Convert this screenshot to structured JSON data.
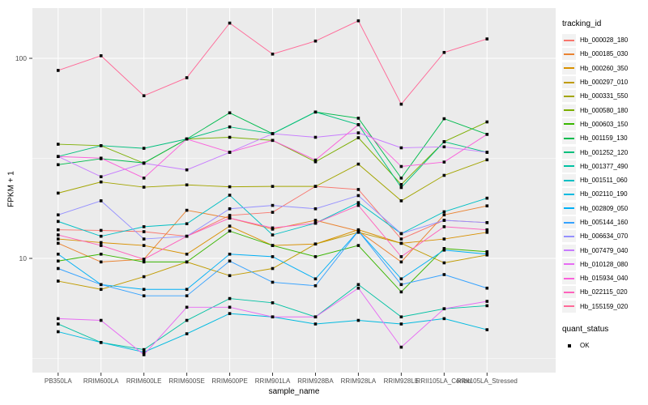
{
  "chart_data": {
    "type": "line",
    "title": "",
    "xlabel": "sample_name",
    "ylabel": "FPKM + 1",
    "y_scale": "log10",
    "y_ticks": [
      {
        "value": 10,
        "label": "10"
      },
      {
        "value": 100,
        "label": "100"
      }
    ],
    "y_minor_ticks": [
      3.162,
      31.62
    ],
    "ylim": [
      2.6,
      180
    ],
    "grid": true,
    "panel_color": "#EBEBEB",
    "gridline_color": "#FFFFFF",
    "tick_label_color": "#4D4D4D",
    "point_shape": "filled-square",
    "point_color": "#000000",
    "legend_position": "right",
    "legend_title": "tracking_id",
    "legend2_title": "quant_status",
    "legend2_items": [
      {
        "label": "OK"
      }
    ],
    "categories": [
      "PB350LA",
      "RRIM600LA",
      "RRIM600LE",
      "RRIM600SE",
      "RRIM600PE",
      "RRIM901LA",
      "RRIM928BA",
      "RRIM928LA",
      "RRIM928LE",
      "RRII105LA_Control",
      "RRII105LA_Stressed"
    ],
    "series": [
      {
        "name": "Hb_000028_180",
        "color": "#F8766D",
        "values": [
          13.9,
          13.8,
          13.6,
          12.9,
          16.4,
          17.0,
          22.9,
          22.1,
          12.5,
          15.5,
          15.1
        ]
      },
      {
        "name": "Hb_000185_030",
        "color": "#EA8331",
        "values": [
          11.9,
          9.6,
          9.9,
          17.4,
          15.9,
          14.0,
          15.5,
          13.7,
          9.6,
          16.5,
          18.3
        ]
      },
      {
        "name": "Hb_000260_350",
        "color": "#D89000",
        "values": [
          12.5,
          12.0,
          11.6,
          10.5,
          14.5,
          11.6,
          11.8,
          13.9,
          11.9,
          12.5,
          13.5
        ]
      },
      {
        "name": "Hb_000297_010",
        "color": "#C09B00",
        "values": [
          7.7,
          7.0,
          8.1,
          9.6,
          8.2,
          8.9,
          11.8,
          13.5,
          11.9,
          9.5,
          10.4
        ]
      },
      {
        "name": "Hb_000331_550",
        "color": "#A3A500",
        "values": [
          21.2,
          24.1,
          22.7,
          23.3,
          22.8,
          22.9,
          22.9,
          29.6,
          19.4,
          26.0,
          31.1
        ]
      },
      {
        "name": "Hb_000580_180",
        "color": "#7CAE00",
        "values": [
          37.2,
          36.6,
          29.9,
          39.5,
          40.3,
          38.9,
          30.4,
          40.1,
          23.4,
          38.3,
          48.1
        ]
      },
      {
        "name": "Hb_000603_150",
        "color": "#39B600",
        "values": [
          9.7,
          10.5,
          9.6,
          9.6,
          13.7,
          11.6,
          10.2,
          11.6,
          6.8,
          11.2,
          10.8
        ]
      },
      {
        "name": "Hb_001159_130",
        "color": "#00BB4E",
        "values": [
          29.4,
          31.5,
          30.0,
          39.5,
          53.4,
          42.0,
          53.9,
          50.2,
          25.2,
          49.9,
          41.7
        ]
      },
      {
        "name": "Hb_001252_120",
        "color": "#00BF7D",
        "values": [
          32.3,
          36.6,
          35.5,
          39.5,
          45.4,
          42.0,
          53.9,
          46.6,
          22.6,
          38.3,
          33.9
        ]
      },
      {
        "name": "Hb_001377_490",
        "color": "#00C1A3",
        "values": [
          4.7,
          3.8,
          3.5,
          4.9,
          6.3,
          6.0,
          5.1,
          7.4,
          5.1,
          5.6,
          5.8
        ]
      },
      {
        "name": "Hb_001511_060",
        "color": "#00BFC4",
        "values": [
          15.3,
          12.9,
          14.4,
          14.9,
          20.7,
          13.1,
          15.0,
          19.0,
          13.3,
          17.1,
          20.0
        ]
      },
      {
        "name": "Hb_002110_190",
        "color": "#00BAE0",
        "values": [
          4.3,
          3.8,
          3.4,
          4.2,
          5.3,
          5.1,
          4.7,
          4.9,
          4.7,
          5.0,
          4.4
        ]
      },
      {
        "name": "Hb_002809_050",
        "color": "#00B0F6",
        "values": [
          10.5,
          7.4,
          7.0,
          7.0,
          10.5,
          10.2,
          7.9,
          13.7,
          7.9,
          11.0,
          10.5
        ]
      },
      {
        "name": "Hb_005144_160",
        "color": "#35A2FF",
        "values": [
          8.9,
          7.4,
          6.5,
          6.5,
          9.7,
          7.6,
          7.3,
          13.7,
          7.4,
          8.3,
          7.1
        ]
      },
      {
        "name": "Hb_006634_070",
        "color": "#9590FF",
        "values": [
          16.5,
          19.4,
          12.5,
          12.9,
          17.7,
          18.4,
          17.7,
          20.6,
          13.3,
          15.5,
          15.1
        ]
      },
      {
        "name": "Hb_007479_040",
        "color": "#C77CFF",
        "values": [
          32.3,
          25.6,
          29.9,
          27.7,
          33.9,
          42.0,
          40.3,
          42.4,
          35.7,
          36.1,
          33.9
        ]
      },
      {
        "name": "Hb_010128_080",
        "color": "#E76BF3",
        "values": [
          5.0,
          4.9,
          3.3,
          5.7,
          5.7,
          5.1,
          5.1,
          7.1,
          3.6,
          5.6,
          6.1
        ]
      },
      {
        "name": "Hb_015934_040",
        "color": "#FA62DB",
        "values": [
          32.3,
          31.7,
          25.2,
          39.5,
          33.9,
          38.9,
          31.0,
          46.6,
          28.8,
          30.3,
          41.7
        ]
      },
      {
        "name": "Hb_022115_020",
        "color": "#FF62BC",
        "values": [
          13.1,
          11.6,
          9.9,
          12.9,
          15.9,
          14.2,
          15.0,
          18.4,
          10.2,
          14.4,
          13.9
        ]
      },
      {
        "name": "Hb_155159_020",
        "color": "#FF6A98",
        "values": [
          87,
          103,
          65,
          80,
          150,
          105,
          122,
          154,
          59,
          107,
          125
        ]
      }
    ]
  }
}
